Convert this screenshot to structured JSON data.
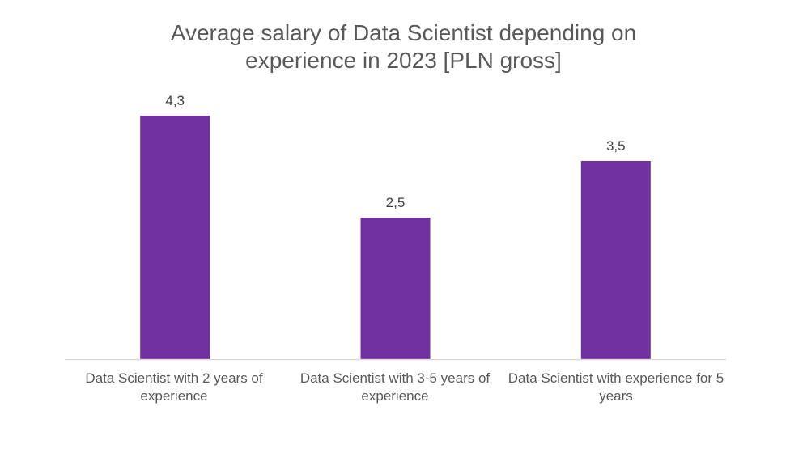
{
  "chart_data": {
    "type": "bar",
    "title_lines": [
      "Average salary of Data Scientist depending on",
      "experience in 2023 [PLN gross]"
    ],
    "categories": [
      "Data Scientist with 2 years of experience",
      "Data Scientist with 3-5 years of experience",
      "Data Scientist with experience for 5 years"
    ],
    "values": [
      4.3,
      2.5,
      3.5
    ],
    "value_labels": [
      "4,3",
      "2,5",
      "3,5"
    ],
    "ylim": [
      0,
      5
    ],
    "grid": false,
    "legend": "none",
    "bar_color": "#7030A0",
    "axis_color": "#D9D9D9"
  }
}
